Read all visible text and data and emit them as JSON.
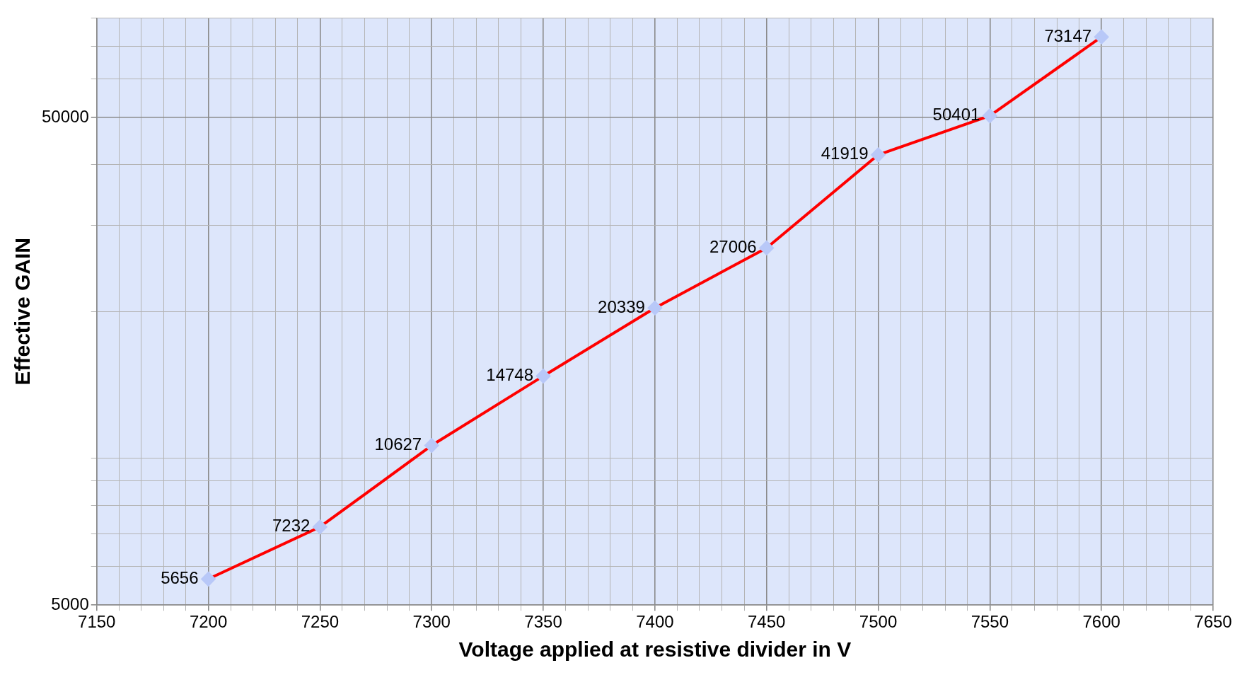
{
  "chart_data": {
    "type": "line",
    "xlabel": "Voltage applied at resistive divider in V",
    "ylabel": "Effective GAIN",
    "x": [
      7200,
      7250,
      7300,
      7350,
      7400,
      7450,
      7500,
      7550,
      7600
    ],
    "series": [
      {
        "color": "#ff0000",
        "values": [
          5656,
          7232,
          10627,
          14748,
          20339,
          27006,
          41919,
          50401,
          73147
        ]
      }
    ],
    "xlim": [
      7150,
      7650
    ],
    "xticks": [
      7150,
      {
        "value": 7160,
        "label": null
      },
      {
        "value": 7170,
        "label": null
      },
      {
        "value": 7180,
        "label": null
      },
      {
        "value": 7190,
        "label": null
      },
      7200,
      {
        "value": 7210,
        "label": null
      },
      {
        "value": 7220,
        "label": null
      },
      {
        "value": 7230,
        "label": null
      },
      {
        "value": 7240,
        "label": null
      },
      7250,
      {
        "value": 7260,
        "label": null
      },
      {
        "value": 7270,
        "label": null
      },
      {
        "value": 7280,
        "label": null
      },
      {
        "value": 7290,
        "label": null
      },
      7300,
      {
        "value": 7310,
        "label": null
      },
      {
        "value": 7320,
        "label": null
      },
      {
        "value": 7330,
        "label": null
      },
      {
        "value": 7340,
        "label": null
      },
      7350,
      {
        "value": 7360,
        "label": null
      },
      {
        "value": 7370,
        "label": null
      },
      {
        "value": 7380,
        "label": null
      },
      {
        "value": 7390,
        "label": null
      },
      7400,
      {
        "value": 7410,
        "label": null
      },
      {
        "value": 7420,
        "label": null
      },
      {
        "value": 7430,
        "label": null
      },
      {
        "value": 7440,
        "label": null
      },
      7450,
      {
        "value": 7460,
        "label": null
      },
      {
        "value": 7470,
        "label": null
      },
      {
        "value": 7480,
        "label": null
      },
      {
        "value": 7490,
        "label": null
      },
      7500,
      {
        "value": 7510,
        "label": null
      },
      {
        "value": 7520,
        "label": null
      },
      {
        "value": 7530,
        "label": null
      },
      {
        "value": 7540,
        "label": null
      },
      7550,
      {
        "value": 7560,
        "label": null
      },
      {
        "value": 7570,
        "label": null
      },
      {
        "value": 7580,
        "label": null
      },
      {
        "value": 7590,
        "label": null
      },
      7600,
      {
        "value": 7610,
        "label": null
      },
      {
        "value": 7620,
        "label": null
      },
      {
        "value": 7630,
        "label": null
      },
      {
        "value": 7640,
        "label": null
      },
      7650
    ],
    "ylim": [
      5000,
      80000
    ],
    "yticks": [
      5000,
      {
        "value": 6000,
        "label": null
      },
      {
        "value": 7000,
        "label": null
      },
      {
        "value": 8000,
        "label": null
      },
      {
        "value": 9000,
        "label": null
      },
      {
        "value": 10000,
        "label": null
      },
      {
        "value": 20000,
        "label": null
      },
      {
        "value": 30000,
        "label": null
      },
      {
        "value": 40000,
        "label": null
      },
      50000,
      {
        "value": 60000,
        "label": null
      },
      {
        "value": 70000,
        "label": null
      },
      {
        "value": 80000,
        "label": null
      }
    ],
    "log": "y",
    "grid": true,
    "legend": false,
    "marker": "diamond",
    "line_style": "solid",
    "data_labels": true
  }
}
